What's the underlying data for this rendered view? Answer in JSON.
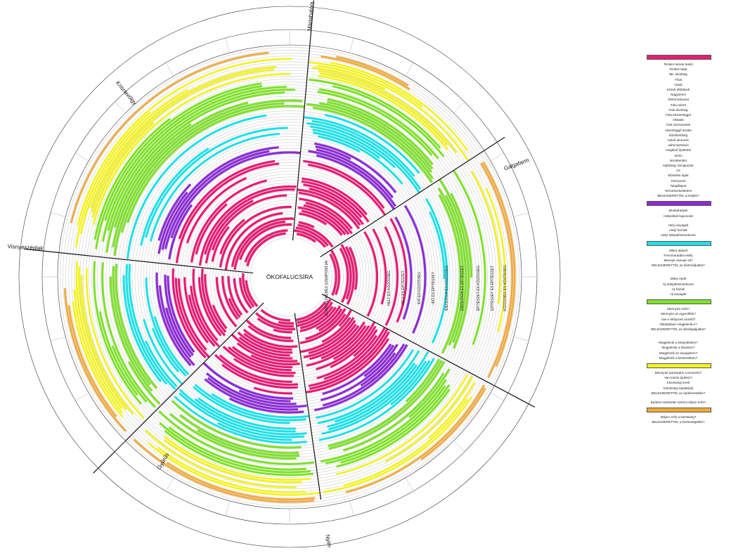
{
  "title": "ÖKOFALUCSÍRA",
  "colors": {
    "magenta": "#e61c73",
    "purple": "#8c2bd6",
    "cyan": "#22dfe6",
    "green": "#7ee12a",
    "yellow": "#f2f226",
    "orange": "#f2a93a",
    "grey_ring": "#d4d4d4",
    "line": "#111111"
  },
  "villages": [
    {
      "name": "Máriahalom"
    },
    {
      "name": "Galgafarm"
    },
    {
      "name": "Nyim"
    },
    {
      "name": "Gyűrűs"
    },
    {
      "name": "Visnyeszéplak"
    },
    {
      "name": "Krisnavölgy"
    }
  ],
  "ring_labels": [
    "ELHELYEZKEDÉS SZEMPONTJAI",
    "HELY ÉS KÖZÖSSÉG",
    "HELY ÉS ÉPÍTÉSZET",
    "IDŐ ÉS KÖZÖSSÉG",
    "IDŐ ÉS ÉPÍTÉSZET",
    "IDEOLÓGIA ÉS KÖZÖSSÉG",
    "IDEOLÓGIA ÉS ÉPÍTÉSZET",
    "ÉPÍTÉSZET ÉS KÖZÖSSÉG",
    "ÉPÍTÉSZET ÉS ÉPÍTÉSZET",
    "KÖZÖSSÉG ÉS KÖZÖSSÉG"
  ],
  "legend": [
    {
      "color": "#e61c73",
      "items": [
        "Terület mérete hektó",
        "Terület határ",
        "Bp. távolság",
        "Fővá",
        "Vasút",
        "Közeli átfolások",
        "Nagyüzem",
        "Önkormányzat",
        "Falu méret",
        "Falu távolság",
        "Falu közösséggel",
        "Oktatás",
        "Civil szervezetek",
        "összefüggő terület",
        "bővíthetőség",
        "belső tervezés",
        "adminisztráció",
        "meglévő épületek",
        "ármin",
        "dombterület",
        "lejtősség, benapozás",
        "víz",
        "Művelési ágak",
        "Környezet",
        "Talajállapot",
        "Természetvédelem",
        "BELESZERETTÉL a helybe?"
      ]
    },
    {
      "color": "#8c2bd6",
      "items": [
        "Munkahelyek",
        "Helyiekkel kapcsolat",
        "",
        "Helyi anyagok",
        "Helyi formák",
        "Helyi településszerkezet"
      ]
    },
    {
      "color": "#22dfe6",
      "items": [
        "Mikor alakult",
        "Fennmaradási esély",
        "Mennyit vannak ott?",
        "BELESZERETTÉL az életmódjukba?",
        "",
        "",
        "Mikor épült",
        "Új településszerkezet",
        "Új házak",
        "Új anyagok"
      ]
    },
    {
      "color": "#7ee12a",
      "items": [
        "Mennyire erős?",
        "Mennyire az egyenlítés?",
        "Van-e kifejezett vezető?",
        "Oktatásban megjelenik-e?",
        "BELESZERETTÉL az ideológiájukba?",
        "",
        "",
        "Megjelenik a településben?",
        "Megjelenik a házakon?",
        "Megjelenik az anyagokon?",
        "Megjelenik a közterekben?"
      ]
    },
    {
      "color": "#f2f226",
      "items": [
        "Mennyire partcipatív a tervezés?",
        "Van közös építész?",
        "Közösségi terek",
        "Közösségi épület(ek)",
        "BELESZERETTÉL az építészetükbe?",
        "",
        "Építész eszköztár szerint milyen erős?"
      ]
    },
    {
      "color": "#f2a93a",
      "items": [
        "Milyen erős a közösség?",
        "BELESZERETTÉL a közösségükbe?"
      ]
    }
  ]
}
